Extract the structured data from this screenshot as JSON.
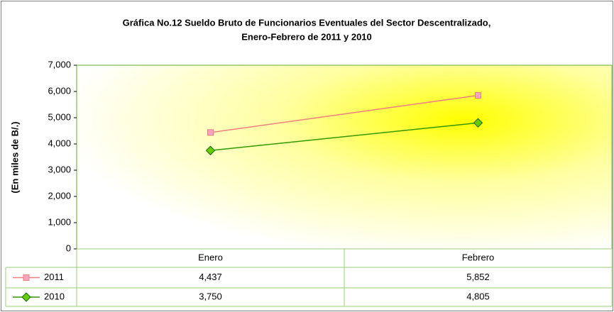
{
  "chart_data": {
    "type": "line",
    "title": [
      "Gráfica No.12 Sueldo Bruto de Funcionarios Eventuales del Sector Descentralizado,",
      "Enero-Febrero de 2011 y 2010"
    ],
    "y_label": "(En miles de B/.)",
    "categories": [
      "Enero",
      "Febrero"
    ],
    "series": [
      {
        "name": "2011",
        "color": "#f08080",
        "marker": "square",
        "marker_color": "#f4a6c0",
        "values": [
          4437,
          5852
        ],
        "value_labels": [
          "4,437",
          "5,852"
        ]
      },
      {
        "name": "2010",
        "color": "#339900",
        "marker": "diamond",
        "marker_color": "#66cc00",
        "values": [
          3750,
          4805
        ],
        "value_labels": [
          "3,750",
          "4,805"
        ]
      }
    ],
    "ylim": [
      0,
      7000
    ],
    "yticks": [
      0,
      {
        "value": 1000,
        "label": "1,000"
      },
      {
        "value": 2000,
        "label": "2,000"
      },
      {
        "value": 3000,
        "label": "3,000"
      },
      {
        "value": 4000,
        "label": "4,000"
      },
      {
        "value": 5000,
        "label": "5,000"
      },
      {
        "value": 6000,
        "label": "6,000"
      },
      {
        "value": 7000,
        "label": "7,000"
      }
    ],
    "grid": false,
    "data_table": true
  }
}
